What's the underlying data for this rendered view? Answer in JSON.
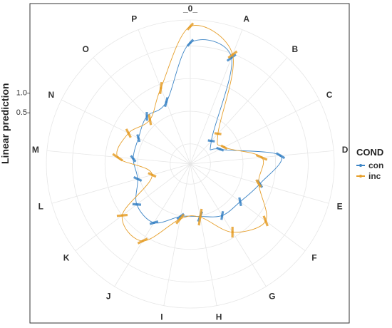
{
  "chart_data": {
    "type": "line",
    "coord": "polar",
    "ylabel": "Linear prediction",
    "y_ticks": [
      {
        "value": 1.0,
        "label": "1.0"
      },
      {
        "value": 0.5,
        "label": "0.5"
      }
    ],
    "ylim": [
      -0.7,
      1.4
    ],
    "grid": true,
    "legend": {
      "title": "COND",
      "position": "right"
    },
    "categories": [
      "_0_",
      "A",
      "B",
      "C",
      "D",
      "E",
      "F",
      "G",
      "H",
      "I",
      "J",
      "K",
      "L",
      "M",
      "N",
      "O",
      "P"
    ],
    "series": [
      {
        "name": "con",
        "color": "#3D85C6",
        "values": [
          1.05,
          0.94,
          -0.33,
          -0.3,
          0.58,
          0.3,
          0.15,
          0.12,
          0.01,
          0.01,
          0.25,
          0.22,
          0.03,
          0.07,
          0.08,
          0.18,
          0.21
        ],
        "ci": [
          [
            1.0,
            1.1
          ],
          [
            0.87,
            1.01
          ],
          [
            -0.36,
            -0.3
          ],
          [
            -0.34,
            -0.26
          ],
          [
            0.52,
            0.64
          ],
          [
            0.25,
            0.35
          ],
          [
            0.1,
            0.2
          ],
          [
            0.07,
            0.17
          ],
          [
            -0.06,
            0.08
          ],
          [
            -0.04,
            0.06
          ],
          [
            0.2,
            0.3
          ],
          [
            0.17,
            0.27
          ],
          [
            -0.02,
            0.08
          ],
          [
            0.03,
            0.11
          ],
          [
            0.04,
            0.12
          ],
          [
            0.13,
            0.23
          ],
          [
            0.15,
            0.27
          ]
        ]
      },
      {
        "name": "inc",
        "color": "#E69F2B",
        "values": [
          1.3,
          0.99,
          -0.18,
          -0.23,
          0.29,
          0.28,
          0.64,
          0.42,
          0.02,
          0.05,
          0.58,
          0.5,
          -0.2,
          0.31,
          0.25,
          0.11,
          0.44
        ],
        "ci": [
          [
            1.25,
            1.35
          ],
          [
            0.92,
            1.06
          ],
          [
            -0.21,
            -0.15
          ],
          [
            -0.26,
            -0.2
          ],
          [
            0.21,
            0.37
          ],
          [
            0.23,
            0.33
          ],
          [
            0.57,
            0.71
          ],
          [
            0.35,
            0.49
          ],
          [
            -0.1,
            0.14
          ],
          [
            -0.03,
            0.13
          ],
          [
            0.51,
            0.65
          ],
          [
            0.43,
            0.57
          ],
          [
            -0.25,
            -0.15
          ],
          [
            0.23,
            0.39
          ],
          [
            0.19,
            0.31
          ],
          [
            0.04,
            0.18
          ],
          [
            0.36,
            0.52
          ]
        ]
      }
    ]
  }
}
